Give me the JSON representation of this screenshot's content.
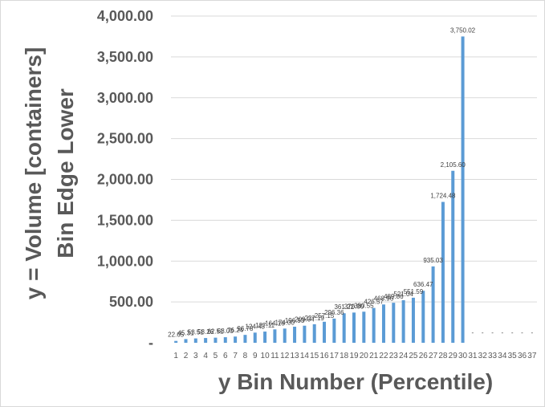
{
  "chart_data": {
    "type": "bar",
    "ylabel": [
      "y = Volume [containers]",
      "Bin Edge Lower"
    ],
    "xlabel": "y Bin Number (Percentile)",
    "ylim": [
      0,
      4000
    ],
    "grid": true,
    "yticks": [
      {
        "value": 0,
        "label": "-"
      },
      {
        "value": 500,
        "label": "500.00"
      },
      {
        "value": 1000,
        "label": "1,000.00"
      },
      {
        "value": 1500,
        "label": "1,500.00"
      },
      {
        "value": 2000,
        "label": "2,000.00"
      },
      {
        "value": 2500,
        "label": "2,500.00"
      },
      {
        "value": 3000,
        "label": "3,000.00"
      },
      {
        "value": 3500,
        "label": "3,500.00"
      },
      {
        "value": 4000,
        "label": "4,000.00"
      }
    ],
    "categories": [
      "1",
      "2",
      "3",
      "4",
      "5",
      "6",
      "7",
      "8",
      "9",
      "10",
      "11",
      "12",
      "13",
      "14",
      "15",
      "16",
      "17",
      "18",
      "19",
      "20",
      "21",
      "22",
      "23",
      "24",
      "25",
      "26",
      "27",
      "28",
      "29",
      "30",
      "31",
      "32",
      "33",
      "34",
      "35",
      "36",
      "37"
    ],
    "values": [
      22.65,
      45.31,
      53.51,
      58.26,
      62.51,
      68.0,
      76.24,
      96.78,
      124.43,
      137.11,
      164.16,
      174.0,
      196.93,
      209.04,
      227.19,
      257.15,
      296.36,
      361.22,
      370.0,
      380.55,
      426.57,
      468.96,
      489.86,
      521.04,
      551.59,
      636.47,
      935.03,
      1724.48,
      2105.6,
      3750.02,
      0,
      0,
      0,
      0,
      0,
      0,
      0
    ],
    "data_labels": [
      "22.65",
      "45.31",
      "53.51",
      "58.26",
      "62.51",
      "68.00",
      "76.24",
      "96.78",
      "124.43",
      "137.11",
      "164.16",
      "174.00",
      "196.93",
      "209.04",
      "227.19",
      "257.15",
      "296.36",
      "361.22",
      "370.00",
      "380.55",
      "426.57",
      "468.96",
      "489.86",
      "521.04",
      "551.59",
      "636.47",
      "935.03",
      "1,724.48",
      "2,105.60",
      "3,750.02",
      "-",
      "-",
      "-",
      "-",
      "-",
      "-",
      "-"
    ],
    "colors": {
      "bar": "#5b9bd5",
      "grid": "#d9d9d9",
      "axis_text": "#595959",
      "label_text": "#404040"
    }
  }
}
